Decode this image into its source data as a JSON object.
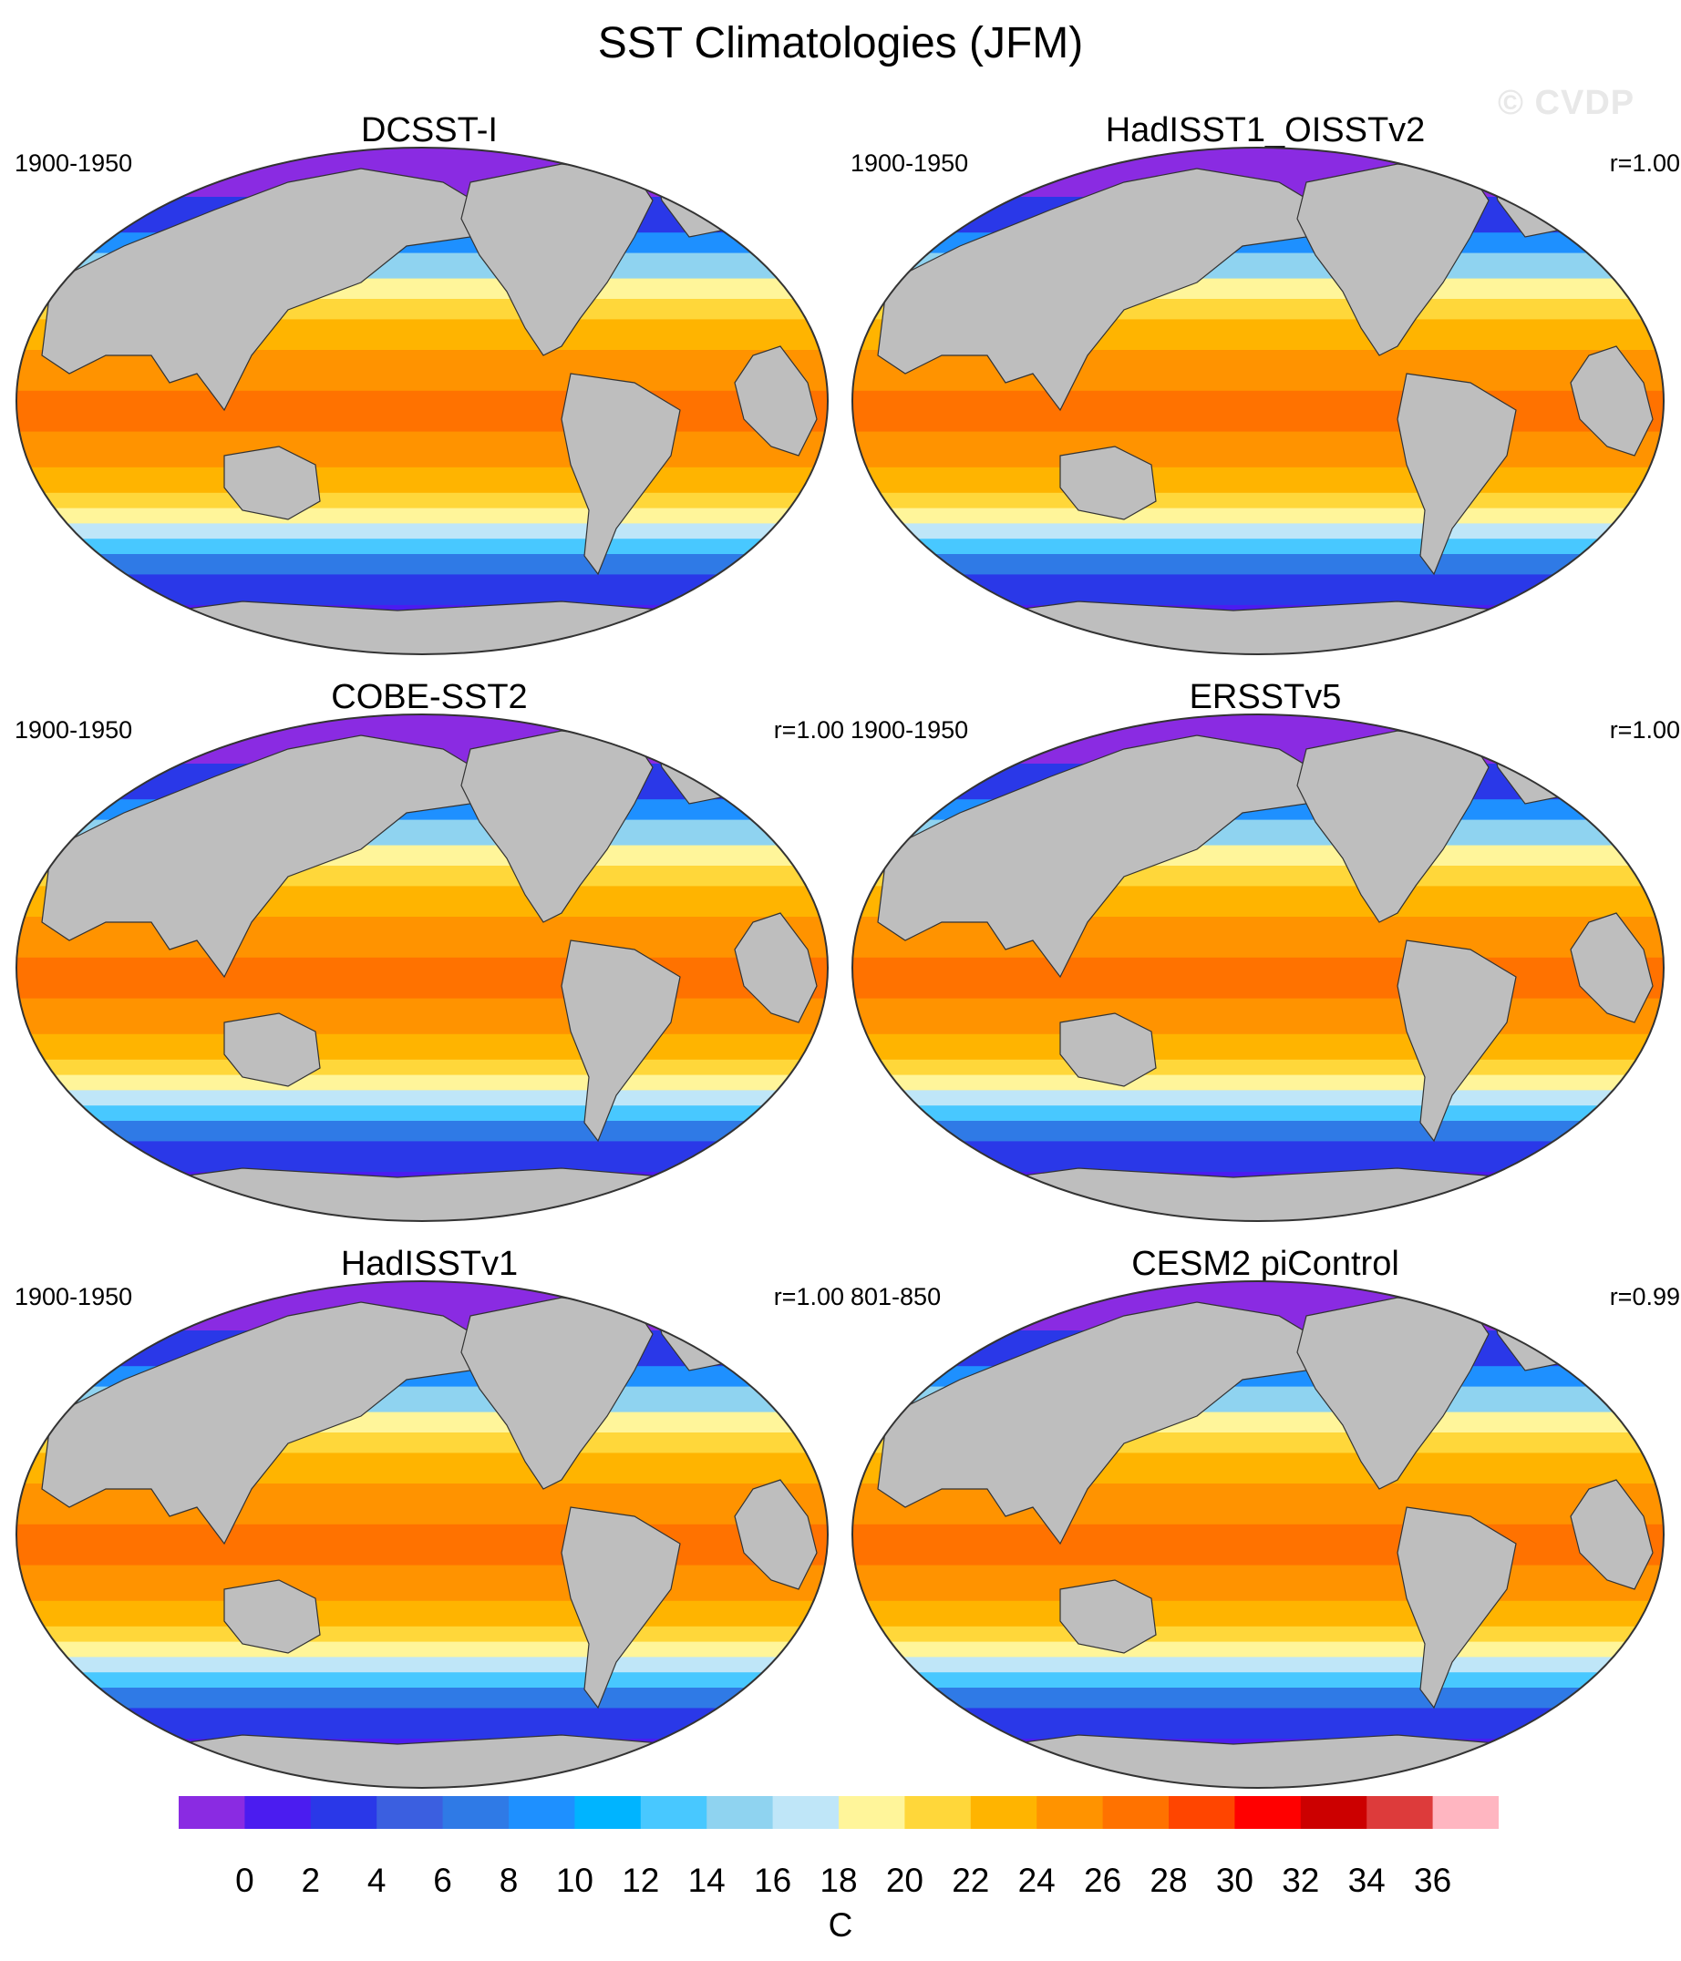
{
  "title": "SST Climatologies (JFM)",
  "watermark": "© CVDP",
  "panels": [
    {
      "name": "DCSST-I",
      "period": "1900-1950",
      "corr": ""
    },
    {
      "name": "HadISST1_OISSTv2",
      "period": "1900-1950",
      "corr": "r=1.00"
    },
    {
      "name": "COBE-SST2",
      "period": "1900-1950",
      "corr": "r=1.00"
    },
    {
      "name": "ERSSTv5",
      "period": "1900-1950",
      "corr": "r=1.00"
    },
    {
      "name": "HadISSTv1",
      "period": "1900-1950",
      "corr": "r=1.00"
    },
    {
      "name": "CESM2 piControl",
      "period": "801-850",
      "corr": "r=0.99"
    }
  ],
  "colorbar": {
    "unit": "C",
    "tick_labels": [
      "0",
      "2",
      "4",
      "6",
      "8",
      "10",
      "12",
      "14",
      "16",
      "18",
      "20",
      "22",
      "24",
      "26",
      "28",
      "30",
      "32",
      "34",
      "36"
    ],
    "colors": [
      "#8a2be2",
      "#4b1cf0",
      "#2a38e8",
      "#3b5fe0",
      "#2f7ae6",
      "#1e90ff",
      "#00b4ff",
      "#48c8ff",
      "#8fd3f0",
      "#bfe6f8",
      "#fff59a",
      "#ffd73a",
      "#ffb400",
      "#ff9300",
      "#ff7200",
      "#ff4500",
      "#ff0000",
      "#cc0000",
      "#dd3b3b",
      "#ffb6c1"
    ]
  },
  "map_colors": {
    "land": "#bebebe",
    "missing": "#ffffff",
    "outline": "#333333"
  }
}
